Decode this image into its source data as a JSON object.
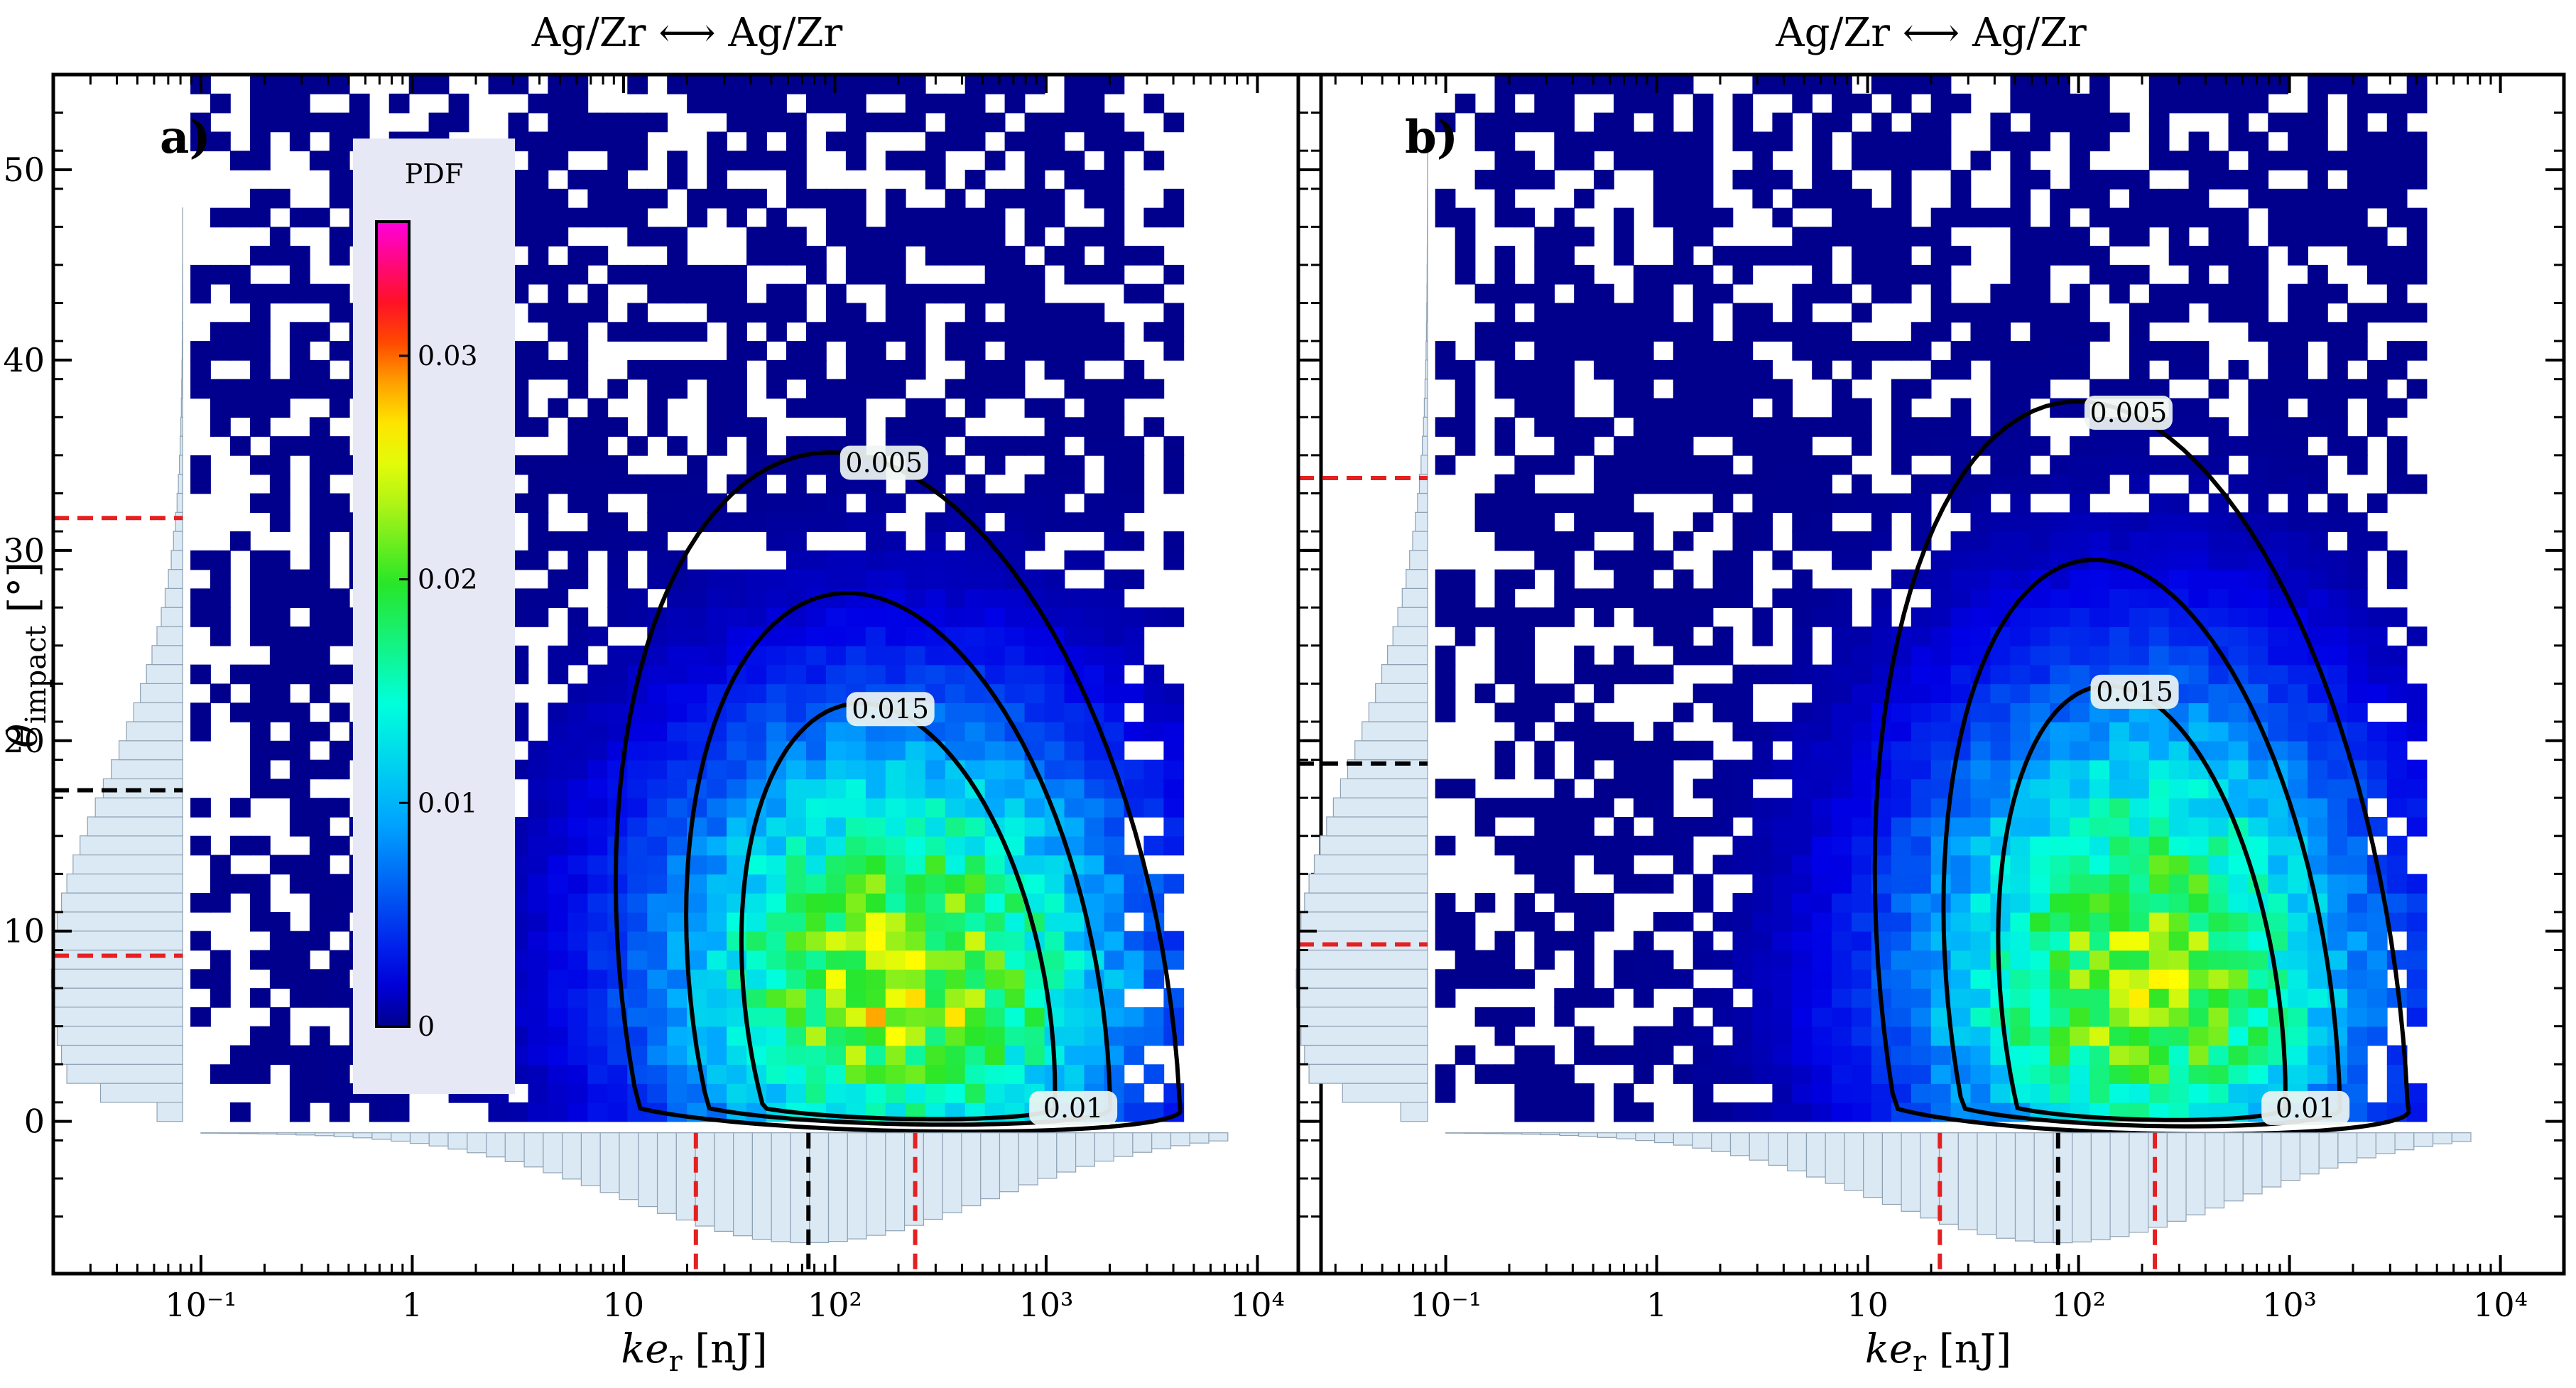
{
  "chart_data": [
    {
      "type": "heatmap",
      "panel_label": "a)",
      "title": "Ag/Zr ⟷ Ag/Zr",
      "xscale": "log",
      "xlim": [
        0.02,
        20000
      ],
      "ylim": [
        -8,
        55
      ],
      "xticks": [
        0.1,
        1,
        10,
        100,
        1000,
        10000
      ],
      "xtick_labels": [
        "10⁻¹",
        "1",
        "10",
        "10²",
        "10³",
        "10⁴"
      ],
      "yticks": [
        0,
        10,
        20,
        30,
        40,
        50
      ],
      "ytick_labels": [
        "0",
        "10",
        "20",
        "30",
        "40",
        "50"
      ],
      "xlabel": {
        "base": "ke",
        "sub": "r",
        "unit": " [nJ]"
      },
      "ylabel": {
        "base": "θ",
        "sub": "impact",
        "unit": " [°]"
      },
      "colorbar": {
        "title": "PDF",
        "range": [
          0,
          0.036
        ],
        "ticks": [
          0,
          0.01,
          0.02,
          0.03
        ],
        "tick_labels": [
          "0",
          "0.01",
          "0.02",
          "0.03"
        ],
        "placement": "inset-left"
      },
      "density": {
        "log_ke_peak": 2.3,
        "theta_peak": 5.5,
        "log_ke_spread": 0.75,
        "theta_spread": 9.5,
        "peak_pdf": 0.024
      },
      "contours": [
        {
          "level": 0.005,
          "label": "0.005"
        },
        {
          "level": 0.01,
          "label": "0.01"
        },
        {
          "level": 0.015,
          "label": "0.015"
        }
      ],
      "ke_marginal": {
        "median": 75,
        "lower": 22,
        "upper": 240
      },
      "theta_marginal": {
        "median": 17.4,
        "lower": 8.7,
        "upper": 31.7
      }
    },
    {
      "type": "heatmap",
      "panel_label": "b)",
      "title": "Ag/Zr ⟷ Ag/Zr",
      "xscale": "log",
      "xlim": [
        0.02,
        20000
      ],
      "ylim": [
        -8,
        55
      ],
      "xticks": [
        0.1,
        1,
        10,
        100,
        1000,
        10000
      ],
      "xtick_labels": [
        "10⁻¹",
        "1",
        "10",
        "10²",
        "10³",
        "10⁴"
      ],
      "yticks": [
        0,
        10,
        20,
        30,
        40,
        50
      ],
      "xlabel": {
        "base": "ke",
        "sub": "r",
        "unit": " [nJ]"
      },
      "density": {
        "log_ke_peak": 2.3,
        "theta_peak": 5.5,
        "log_ke_spread": 0.72,
        "theta_spread": 10.5,
        "peak_pdf": 0.023
      },
      "contours": [
        {
          "level": 0.005,
          "label": "0.005"
        },
        {
          "level": 0.01,
          "label": "0.01"
        },
        {
          "level": 0.015,
          "label": "0.015"
        }
      ],
      "ke_marginal": {
        "median": 80,
        "lower": 22,
        "upper": 230
      },
      "theta_marginal": {
        "median": 18.8,
        "lower": 9.3,
        "upper": 33.8
      }
    }
  ]
}
